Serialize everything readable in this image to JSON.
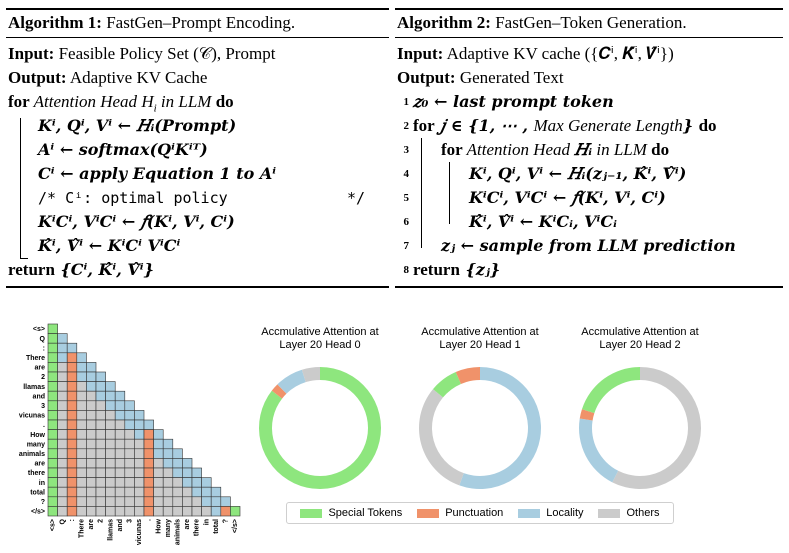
{
  "algo1": {
    "title_bold": "Algorithm 1:",
    "title_rest": " FastGen–Prompt Encoding.",
    "input_kw": "Input:",
    "input_text": " Feasible Policy Set (𝒞), Prompt",
    "output_kw": "Output:",
    "output_text": " Adaptive KV Cache",
    "for_kw": "for",
    "for_it": " Attention Head ",
    "for_head": "H",
    "for_sub": "i",
    "for_it2": " in LLM ",
    "do_kw": "do",
    "l1": "𝑲ⁱ, 𝑸ⁱ, 𝑽ⁱ ← 𝐻ᵢ(Prompt)",
    "l2": "𝑨ⁱ ← softmax(𝑸ⁱ𝑲ⁱᵀ)",
    "l3": "𝑪ⁱ ← apply Equation 1 to 𝑨ⁱ",
    "l4a": "/* Cⁱ:  optimal policy",
    "l4b": "*/",
    "l5": "𝑲ⁱ𝑪ⁱ, 𝑽ⁱ𝑪ⁱ ← 𝑓(𝑲ⁱ, 𝑽ⁱ, 𝑪ⁱ)",
    "l6": "𝑲̂ⁱ, 𝑽̂ⁱ ← 𝑲ⁱ𝑪ⁱ 𝑽ⁱ𝑪ⁱ",
    "return_kw": "return",
    "return_text": " {𝑪ⁱ, 𝑲̂ⁱ, 𝑽̂ⁱ}"
  },
  "algo2": {
    "title_bold": "Algorithm 2:",
    "title_rest": " FastGen–Token Generation.",
    "input_kw": "Input:",
    "input_text": " Adaptive KV cache ({𝑪ⁱ, 𝑲̂ⁱ, 𝑽̂ⁱ})",
    "output_kw": "Output:",
    "output_text": " Generated Text",
    "lines": [
      {
        "n": "1",
        "text": "𝑧₀ ← last prompt token"
      },
      {
        "n": "2",
        "kw": "for",
        "text": " 𝑗 ∈ {1, ⋯ , ",
        "it": "Max Generate Length",
        "text2": "} ",
        "kw2": "do"
      },
      {
        "n": "3",
        "kw": "for",
        "it": " Attention Head ",
        "text": "𝐻ᵢ",
        "it2": " in LLM ",
        "kw2": "do"
      },
      {
        "n": "4",
        "text": "𝑲ⁱ, 𝑸ⁱ, 𝑽ⁱ ← 𝐻ᵢ(𝒛ⱼ₋₁, 𝑲̂ⁱ, 𝑽̂ⁱ)"
      },
      {
        "n": "5",
        "text": "𝑲ⁱ𝑪ⁱ, 𝑽ⁱ𝑪ⁱ ← 𝑓(𝑲ⁱ, 𝑽ⁱ, 𝑪ⁱ)"
      },
      {
        "n": "6",
        "text": "𝑲̂ⁱ, 𝑽̂ⁱ ← 𝑲ⁱ𝑪ᵢ, 𝑽ⁱ𝑪ᵢ"
      },
      {
        "n": "7",
        "text": "𝒛ⱼ ← sample from LLM prediction"
      },
      {
        "n": "8",
        "kw": "return",
        "text": " {𝒛ⱼ}"
      }
    ]
  },
  "heatmap": {
    "tokens": [
      "<s>",
      "Q",
      ":",
      "There",
      "are",
      "2",
      "llamas",
      "and",
      "3",
      "vicunas",
      ".",
      "How",
      "many",
      "animals",
      "are",
      "there",
      "in",
      "total",
      "?",
      "</s>"
    ],
    "colors": {
      "special": "#8ee67e",
      "punct": "#f0926a",
      "locality": "#a8cde0",
      "other": "#cbcbcb"
    }
  },
  "donuts": [
    {
      "title_l1": "Accmulative Attention at",
      "title_l2": "Layer 20 Head 0",
      "slices": [
        {
          "cat": "special",
          "value": 0.855
        },
        {
          "cat": "punct",
          "value": 0.022
        },
        {
          "cat": "locality",
          "value": 0.075
        },
        {
          "cat": "other",
          "value": 0.048
        }
      ]
    },
    {
      "title_l1": "Accmulative Attention at",
      "title_l2": "Layer 20 Head 1",
      "slices": [
        {
          "cat": "locality",
          "value": 0.555
        },
        {
          "cat": "other",
          "value": 0.305
        },
        {
          "cat": "special",
          "value": 0.075
        },
        {
          "cat": "punct",
          "value": 0.065
        }
      ]
    },
    {
      "title_l1": "Accmulative Attention at",
      "title_l2": "Layer 20 Head 2",
      "slices": [
        {
          "cat": "other",
          "value": 0.575
        },
        {
          "cat": "locality",
          "value": 0.2
        },
        {
          "cat": "punct",
          "value": 0.025
        },
        {
          "cat": "special",
          "value": 0.2
        }
      ]
    }
  ],
  "legend": [
    {
      "cat": "special",
      "label": "Special Tokens"
    },
    {
      "cat": "punct",
      "label": "Punctuation"
    },
    {
      "cat": "locality",
      "label": "Locality"
    },
    {
      "cat": "other",
      "label": "Others"
    }
  ]
}
